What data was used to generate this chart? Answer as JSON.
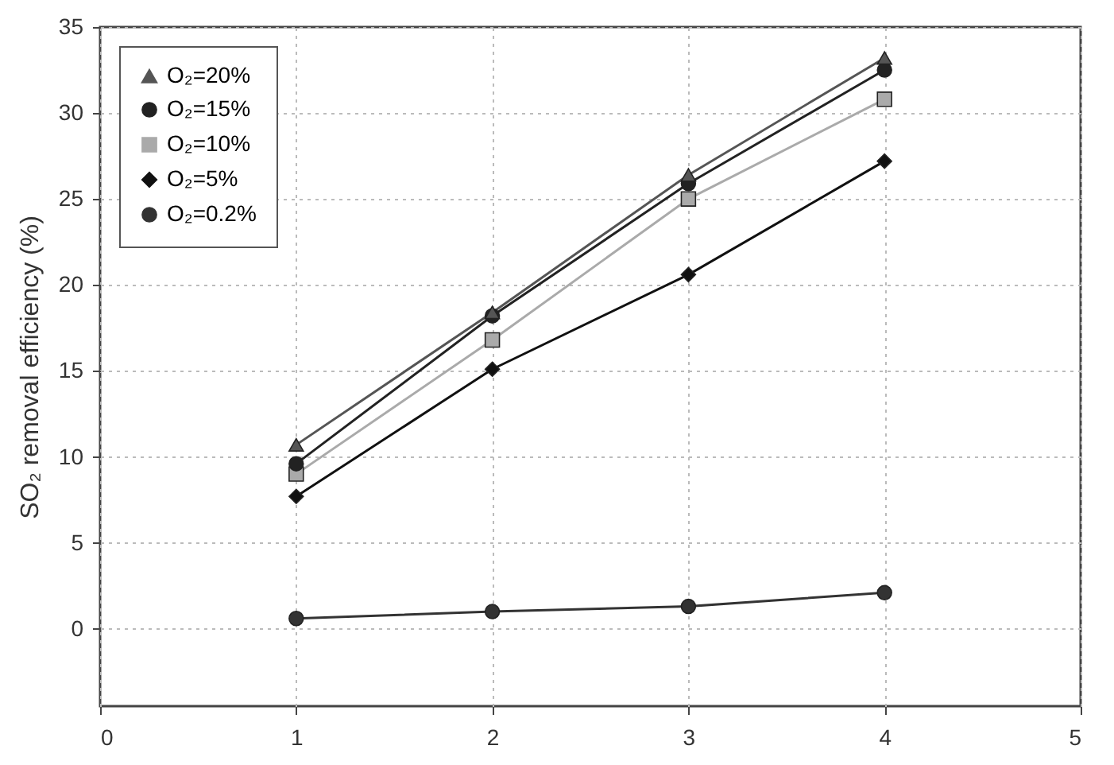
{
  "chart_data": {
    "type": "line",
    "ylabel": "SO₂ removal efficiency (%)",
    "x": [
      1,
      2,
      3,
      4
    ],
    "series": [
      {
        "name": "O₂=20%",
        "color": "#555555",
        "marker": "triangle",
        "values": [
          10.7,
          18.4,
          26.4,
          33.2
        ]
      },
      {
        "name": "O₂=15%",
        "color": "#222222",
        "marker": "circle",
        "values": [
          9.6,
          18.2,
          25.9,
          32.5
        ]
      },
      {
        "name": "O₂=10%",
        "color": "#aaaaaa",
        "marker": "square",
        "values": [
          9.0,
          16.8,
          25.0,
          30.8
        ]
      },
      {
        "name": "O₂=5%",
        "color": "#111111",
        "marker": "diamond",
        "values": [
          7.7,
          15.1,
          20.6,
          27.2
        ]
      },
      {
        "name": "O₂=0.2%",
        "color": "#333333",
        "marker": "circle",
        "values": [
          0.6,
          1.0,
          1.3,
          2.1
        ]
      }
    ],
    "xlim": [
      0,
      5
    ],
    "xticks": [
      0,
      1,
      2,
      3,
      4,
      5
    ],
    "ylim": [
      -4.5,
      35
    ],
    "yticks": [
      0,
      5,
      10,
      15,
      20,
      25,
      30,
      35
    ],
    "grid": true,
    "legend": "top left",
    "line_style": "solid"
  }
}
